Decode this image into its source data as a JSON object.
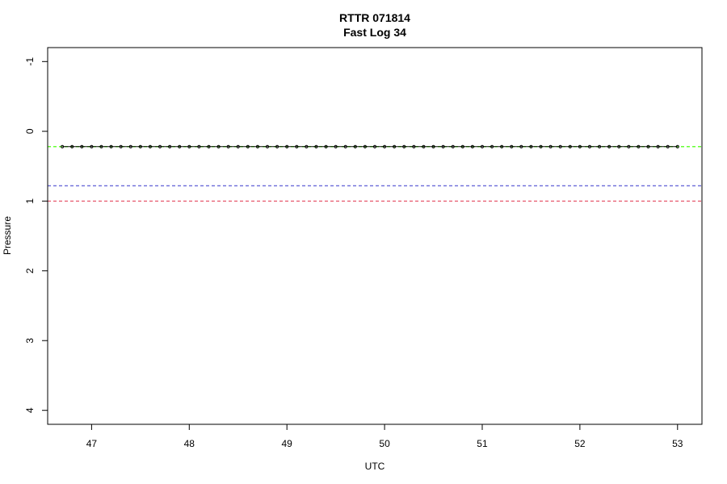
{
  "chart_data": {
    "type": "line",
    "title": "RTTR 071814",
    "subtitle": "Fast Log 34",
    "xlabel": "UTC",
    "ylabel": "Pressure",
    "xlim": [
      46.55,
      53.25
    ],
    "ylim": [
      4.2,
      -1.2
    ],
    "x_ticks": [
      47,
      48,
      49,
      50,
      51,
      52,
      53
    ],
    "x_tick_labels": [
      "47",
      "48",
      "49",
      "50",
      "51",
      "52",
      "53"
    ],
    "y_ticks": [
      -1,
      0,
      1,
      2,
      3,
      4
    ],
    "y_tick_labels": [
      "-1",
      "0",
      "1",
      "2",
      "3",
      "4"
    ],
    "y_reversed": true,
    "grid": false,
    "series": [
      {
        "color": "#000000",
        "x_start": 46.7,
        "x_end": 53.0,
        "x_step": 0.1,
        "y": 0.22
      }
    ],
    "reference_lines": [
      {
        "y": 0.22,
        "color": "#66ff33",
        "style": "dashed"
      },
      {
        "y": 0.78,
        "color": "#3333cc",
        "style": "dashed"
      },
      {
        "y": 1.0,
        "color": "#e0304a",
        "style": "dashed"
      }
    ]
  }
}
